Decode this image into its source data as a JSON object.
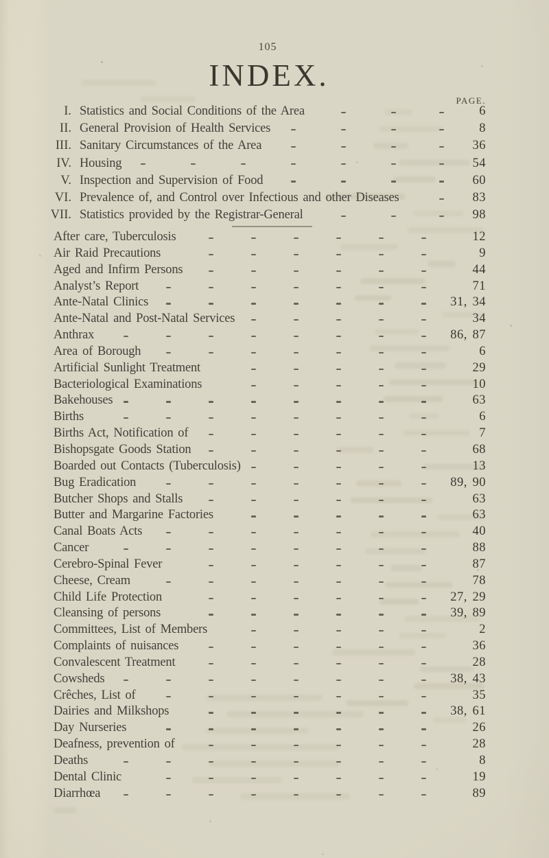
{
  "page": {
    "folio": "105",
    "title": "INDEX.",
    "page_column_header": "PAGE."
  },
  "colors": {
    "paper": "#dad6c5",
    "ink": "#43403a"
  },
  "sections": {
    "contents": [
      {
        "numeral": "I.",
        "label": "Statistics and Social Conditions of the Area",
        "page": "6"
      },
      {
        "numeral": "II.",
        "label": "General Provision of Health Services",
        "page": "8"
      },
      {
        "numeral": "III.",
        "label": "Sanitary Circumstances of the Area",
        "page": "36"
      },
      {
        "numeral": "IV.",
        "label": "Housing",
        "page": "54"
      },
      {
        "numeral": "V.",
        "label": "Inspection and Supervision of Food",
        "page": "60"
      },
      {
        "numeral": "VI.",
        "label": "Prevalence of, and Control over Infectious and other Diseases",
        "page": "83"
      },
      {
        "numeral": "VII.",
        "label": "Statistics provided by the Registrar-General",
        "page": "98"
      }
    ],
    "entries": [
      {
        "label": "After care, Tuberculosis",
        "page": "12"
      },
      {
        "label": "Air Raid Precautions",
        "page": "9"
      },
      {
        "label": "Aged and Infirm Persons",
        "page": "44"
      },
      {
        "label": "Analyst’s Report",
        "page": "71"
      },
      {
        "label": "Ante-Natal Clinics",
        "page": "31, 34"
      },
      {
        "label": "Ante-Natal and Post-Natal Services",
        "page": "34"
      },
      {
        "label": "Anthrax",
        "page": "86, 87"
      },
      {
        "label": "Area of Borough",
        "page": "6"
      },
      {
        "label": "Artificial Sunlight Treatment",
        "page": "29"
      },
      {
        "label": "Bacteriological Examinations",
        "page": "10"
      },
      {
        "label": "Bakehouses",
        "page": "63"
      },
      {
        "label": "Births",
        "page": "6"
      },
      {
        "label": "Births Act, Notification of",
        "page": "7"
      },
      {
        "label": "Bishopsgate Goods Station",
        "page": "68"
      },
      {
        "label": "Boarded out Contacts (Tuberculosis)",
        "page": "13"
      },
      {
        "label": "Bug Eradication",
        "page": "89, 90"
      },
      {
        "label": "Butcher Shops and Stalls",
        "page": "63"
      },
      {
        "label": "Butter and Margarine Factories",
        "page": "63"
      },
      {
        "label": "Canal Boats Acts",
        "page": "40"
      },
      {
        "label": "Cancer",
        "page": "88"
      },
      {
        "label": "Cerebro-Spinal Fever",
        "page": "87"
      },
      {
        "label": "Cheese, Cream",
        "page": "78"
      },
      {
        "label": "Child Life Protection",
        "page": "27, 29"
      },
      {
        "label": "Cleansing of persons",
        "page": "39, 89"
      },
      {
        "label": "Committees, List of Members",
        "page": "2"
      },
      {
        "label": "Complaints of nuisances",
        "page": "36"
      },
      {
        "label": "Convalescent Treatment",
        "page": "28"
      },
      {
        "label": "Cowsheds",
        "page": "38, 43"
      },
      {
        "label": "Crêches, List of",
        "page": "35"
      },
      {
        "label": "Dairies and Milkshops",
        "page": "38, 61"
      },
      {
        "label": "Day Nurseries",
        "page": "26"
      },
      {
        "label": "Deafness, prevention of",
        "page": "28"
      },
      {
        "label": "Deaths",
        "page": "8"
      },
      {
        "label": "Dental Clinic",
        "page": "19"
      },
      {
        "label": "Diarrhœa",
        "page": "89"
      }
    ]
  }
}
